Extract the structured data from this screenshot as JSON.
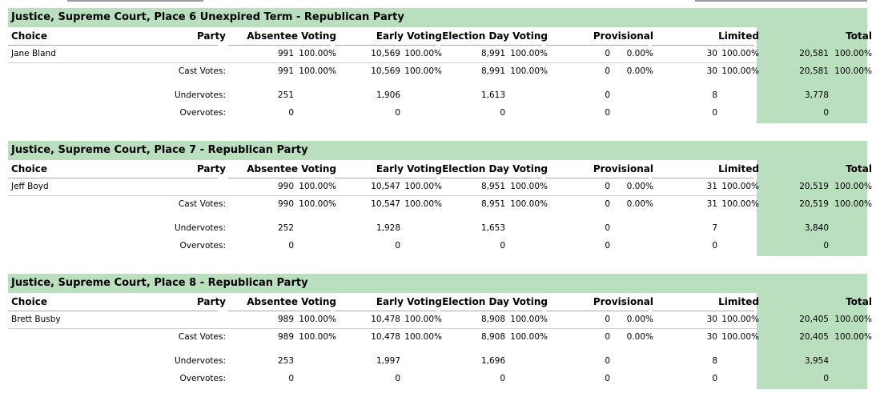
{
  "columns": {
    "choice": "Choice",
    "party": "Party",
    "absentee": "Absentee Voting",
    "early": "Early Voting",
    "election_day": "Election Day Voting",
    "provisional": "Provisional",
    "limited": "Limited",
    "total": "Total"
  },
  "labels": {
    "cast_votes": "Cast Votes:",
    "undervotes": "Undervotes:",
    "overvotes": "Overvotes:"
  },
  "races": [
    {
      "title": "Justice, Supreme Court, Place 6 Unexpired Term - Republican Party",
      "candidate": {
        "name": "Jane Bland",
        "absentee": "991",
        "absentee_pct": "100.00%",
        "early": "10,569",
        "early_pct": "100.00%",
        "election_day": "8,991",
        "election_day_pct": "100.00%",
        "provisional": "0",
        "provisional_pct": "0.00%",
        "limited": "30",
        "limited_pct": "100.00%",
        "total": "20,581",
        "total_pct": "100.00%"
      },
      "cast": {
        "absentee": "991",
        "absentee_pct": "100.00%",
        "early": "10,569",
        "early_pct": "100.00%",
        "election_day": "8,991",
        "election_day_pct": "100.00%",
        "provisional": "0",
        "provisional_pct": "0.00%",
        "limited": "30",
        "limited_pct": "100.00%",
        "total": "20,581",
        "total_pct": "100.00%"
      },
      "undervotes": {
        "absentee": "251",
        "early": "1,906",
        "election_day": "1,613",
        "provisional": "0",
        "limited": "8",
        "total": "3,778"
      },
      "overvotes": {
        "absentee": "0",
        "early": "0",
        "election_day": "0",
        "provisional": "0",
        "limited": "0",
        "total": "0"
      }
    },
    {
      "title": "Justice, Supreme Court, Place 7 - Republican Party",
      "candidate": {
        "name": "Jeff Boyd",
        "absentee": "990",
        "absentee_pct": "100.00%",
        "early": "10,547",
        "early_pct": "100.00%",
        "election_day": "8,951",
        "election_day_pct": "100.00%",
        "provisional": "0",
        "provisional_pct": "0.00%",
        "limited": "31",
        "limited_pct": "100.00%",
        "total": "20,519",
        "total_pct": "100.00%"
      },
      "cast": {
        "absentee": "990",
        "absentee_pct": "100.00%",
        "early": "10,547",
        "early_pct": "100.00%",
        "election_day": "8,951",
        "election_day_pct": "100.00%",
        "provisional": "0",
        "provisional_pct": "0.00%",
        "limited": "31",
        "limited_pct": "100.00%",
        "total": "20,519",
        "total_pct": "100.00%"
      },
      "undervotes": {
        "absentee": "252",
        "early": "1,928",
        "election_day": "1,653",
        "provisional": "0",
        "limited": "7",
        "total": "3,840"
      },
      "overvotes": {
        "absentee": "0",
        "early": "0",
        "election_day": "0",
        "provisional": "0",
        "limited": "0",
        "total": "0"
      }
    },
    {
      "title": "Justice, Supreme Court, Place 8 - Republican Party",
      "candidate": {
        "name": "Brett Busby",
        "absentee": "989",
        "absentee_pct": "100.00%",
        "early": "10,478",
        "early_pct": "100.00%",
        "election_day": "8,908",
        "election_day_pct": "100.00%",
        "provisional": "0",
        "provisional_pct": "0.00%",
        "limited": "30",
        "limited_pct": "100.00%",
        "total": "20,405",
        "total_pct": "100.00%"
      },
      "cast": {
        "absentee": "989",
        "absentee_pct": "100.00%",
        "early": "10,478",
        "early_pct": "100.00%",
        "election_day": "8,908",
        "election_day_pct": "100.00%",
        "provisional": "0",
        "provisional_pct": "0.00%",
        "limited": "30",
        "limited_pct": "100.00%",
        "total": "20,405",
        "total_pct": "100.00%"
      },
      "undervotes": {
        "absentee": "253",
        "early": "1,997",
        "election_day": "1,696",
        "provisional": "0",
        "limited": "8",
        "total": "3,954"
      },
      "overvotes": {
        "absentee": "0",
        "early": "0",
        "election_day": "0",
        "provisional": "0",
        "limited": "0",
        "total": "0"
      }
    }
  ]
}
